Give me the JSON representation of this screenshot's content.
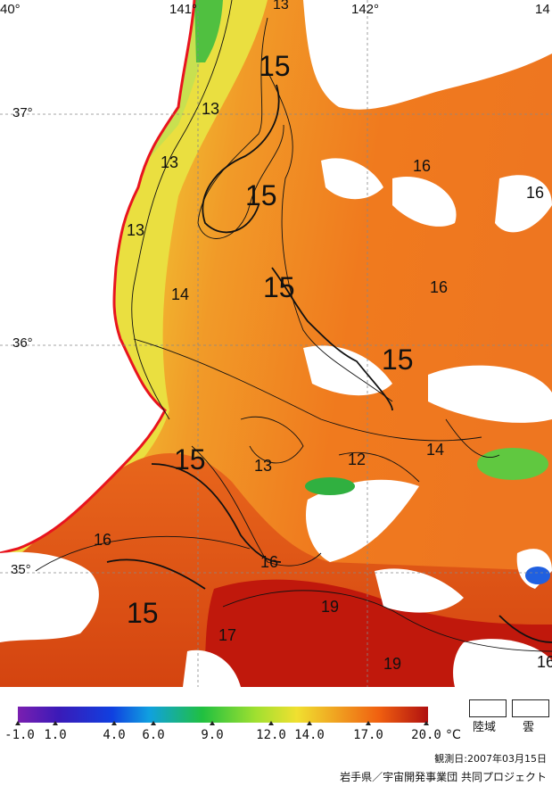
{
  "map": {
    "longitude_labels": [
      "40°",
      "141°",
      "142°",
      "14"
    ],
    "latitude_labels": [
      "37°",
      "36°",
      "35°"
    ],
    "contour_labels": [
      "13",
      "15",
      "13",
      "13",
      "13",
      "15",
      "16",
      "16",
      "13",
      "14",
      "15",
      "16",
      "15",
      "15",
      "12",
      "14",
      "16",
      "13",
      "15",
      "16",
      "15",
      "17",
      "19",
      "19",
      "16"
    ],
    "colors": {
      "land": "#ffffff",
      "coast": "#e8141e",
      "warm": "#f07a1e",
      "mid": "#f0c030",
      "cool": "#e8e040",
      "hot": "#c0180c"
    }
  },
  "legend": {
    "ticks": [
      "-1.0",
      "1.0",
      "4.0",
      "6.0",
      "9.0",
      "12.0",
      "14.0",
      "17.0",
      "20.0"
    ],
    "unit": "°C",
    "key_land": "陸域",
    "key_cloud": "雲",
    "observation_date": "観測日:2007年03月15日",
    "credit": "岩手県／宇宙開発事業団 共同プロジェクト"
  }
}
